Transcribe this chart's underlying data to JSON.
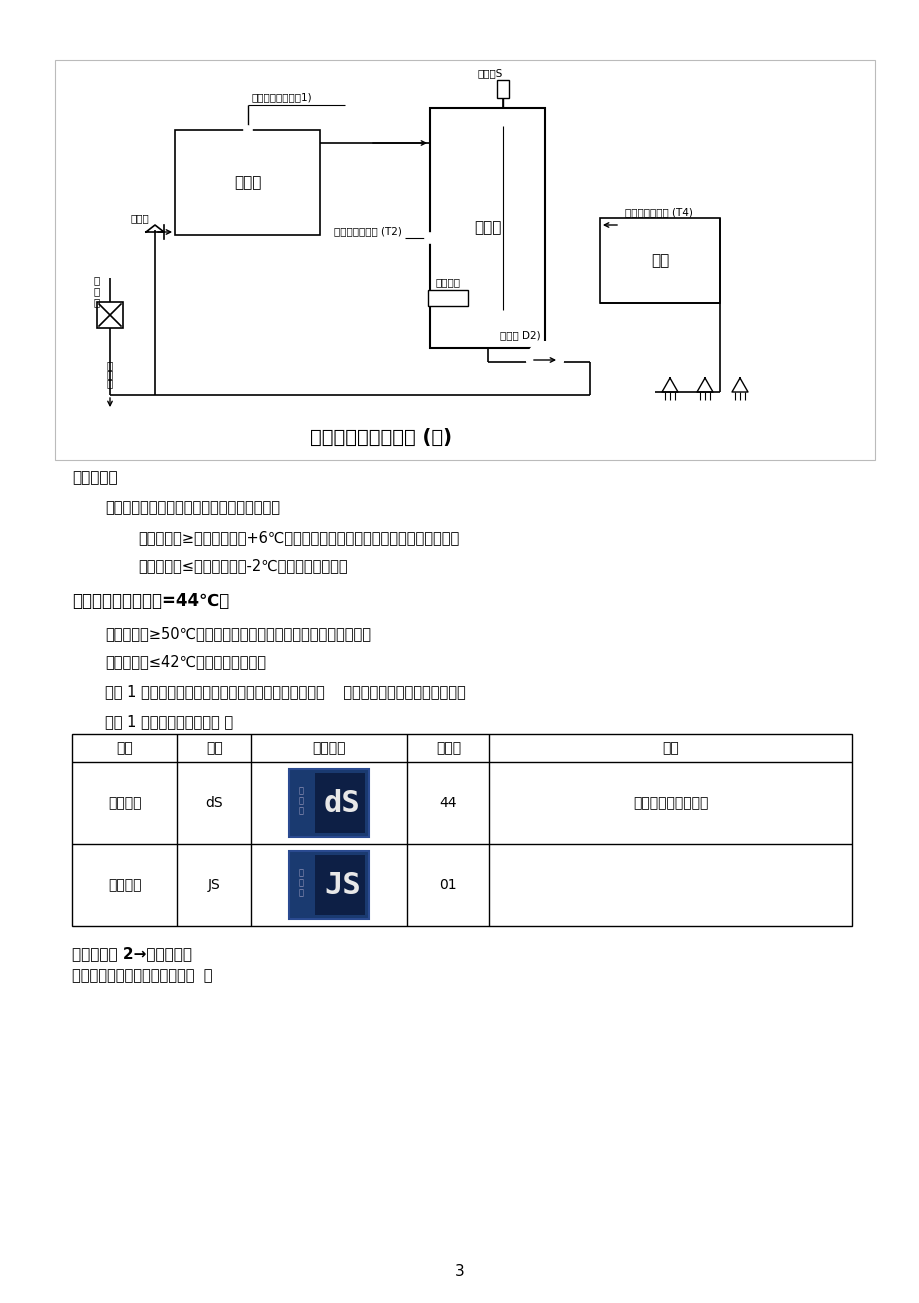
{
  "page_bg": "#ffffff",
  "border_color": "#aaaaaa",
  "text_color": "#000000",
  "title_diagram": "集热工程应用示意图 (续)",
  "work_process_title": "工作过程：",
  "para1": "在此模式状态，系统只执行定温放水动作，：",
  "para2": "集热器温度≥【设定水温】+6℃时，加水阀打开，用冷水将热水顶入热水箱，",
  "para3": "集热器温度≤【设定水温】-2℃时，加水阀关闭；",
  "example_title": "举例：【设定水温】=44℃，",
  "example1": "集热器温度≥50℃时，加水阀打开，用冷水将热水顶入热水箱；",
  "example2": "集热器温度≤42℃时，加水阀关闭；",
  "note1": "模式 1 不会执行初循环和温差循环，是简化的运行模式    ，一般在水箱配置较大时应用；",
  "note2": "模式 1 的主要参数设置参考 ：",
  "table_headers": [
    "参数",
    "代码",
    "显示符号",
    "设定值",
    "说明"
  ],
  "table_row1": [
    "设定水温",
    "dS",
    "",
    "44",
    "集热系统产水的温度"
  ],
  "table_row2": [
    "集热模式",
    "JS",
    "",
    "01",
    ""
  ],
  "display1_text": "dS",
  "display2_text": "JS",
  "footer_title1": "（三）模式 2→温差循环：",
  "footer_title2": "此模式下的集热系统原理图如下  ：",
  "page_num": "3",
  "diag_border": "#bbbbbb",
  "lcd_bg": "#1a3a70",
  "lcd_inner": "#0d1f45",
  "lcd_digit_color": "#e8e8e8",
  "lcd_label_color": "#9999bb"
}
